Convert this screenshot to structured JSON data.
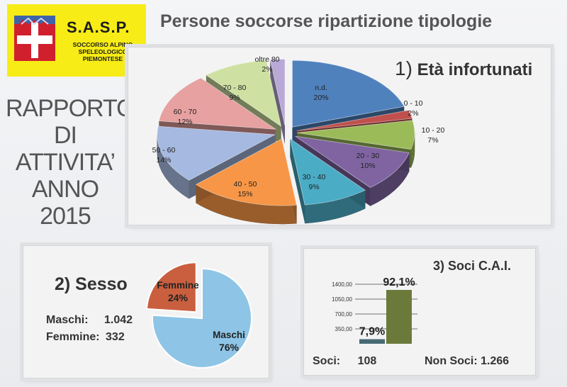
{
  "logo": {
    "title": "S.A.S.P.",
    "subtitle": "SOCCORSO ALPINO\nSPELEOLOGICO\nPIEMONTESE"
  },
  "header": {
    "title": "Persone soccorse ripartizione tipologie"
  },
  "report": {
    "lines": [
      "RAPPORTO",
      "DI",
      "ATTIVITA’",
      "ANNO",
      "2015"
    ]
  },
  "chart_data": [
    {
      "type": "pie",
      "title_num": "1)",
      "title_text": "Età infortunati",
      "slices": [
        {
          "label": "n.d.",
          "pct_label": "20%",
          "value": 20,
          "color": "#4f81bd"
        },
        {
          "label": "0  -  10",
          "pct_label": "2%",
          "value": 2,
          "color": "#c0504d"
        },
        {
          "label": "10  -  20",
          "pct_label": "7%",
          "value": 7,
          "color": "#9bbb59"
        },
        {
          "label": "20  -  30",
          "pct_label": "10%",
          "value": 10,
          "color": "#8064a2"
        },
        {
          "label": "30  -  40",
          "pct_label": "9%",
          "value": 9,
          "color": "#4bacc6"
        },
        {
          "label": "40  -  50",
          "pct_label": "15%",
          "value": 15,
          "color": "#f79646"
        },
        {
          "label": "50  -  60",
          "pct_label": "14%",
          "value": 14,
          "color": "#a6b9e0"
        },
        {
          "label": "60  -  70",
          "pct_label": "12%",
          "value": 12,
          "color": "#e6a1a0"
        },
        {
          "label": "70  -  80",
          "pct_label": "9%",
          "value": 9,
          "color": "#cfe1a2"
        },
        {
          "label": "oltre 80",
          "pct_label": "2%",
          "value": 2,
          "color": "#b9a9d6"
        }
      ]
    },
    {
      "type": "pie",
      "title": "2) Sesso",
      "slices": [
        {
          "label": "Femmine",
          "pct_label": "24%",
          "value": 24,
          "color": "#c95f3f"
        },
        {
          "label": "Maschi",
          "pct_label": "76%",
          "value": 76,
          "color": "#8ec5e6"
        }
      ],
      "stats": [
        {
          "label": "Maschi:",
          "value": "1.042"
        },
        {
          "label": "Femmine:",
          "value": "332"
        }
      ]
    },
    {
      "type": "bar",
      "title": "3) Soci C.A.I.",
      "categories": [
        "Soci",
        "Non Soci"
      ],
      "values": [
        108,
        1266
      ],
      "pct_labels": [
        "7,9%",
        "92,1%"
      ],
      "colors": [
        "#476a73",
        "#6b7a3a"
      ],
      "yticks": [
        "350,00",
        "700,00",
        "1050,00",
        "1400,00"
      ],
      "ytick_values": [
        350,
        700,
        1050,
        1400
      ],
      "ylim": [
        0,
        1400
      ],
      "footer": [
        {
          "label": "Soci:",
          "value": "108"
        },
        {
          "label": "Non Soci:",
          "value": "1.266"
        }
      ]
    }
  ]
}
